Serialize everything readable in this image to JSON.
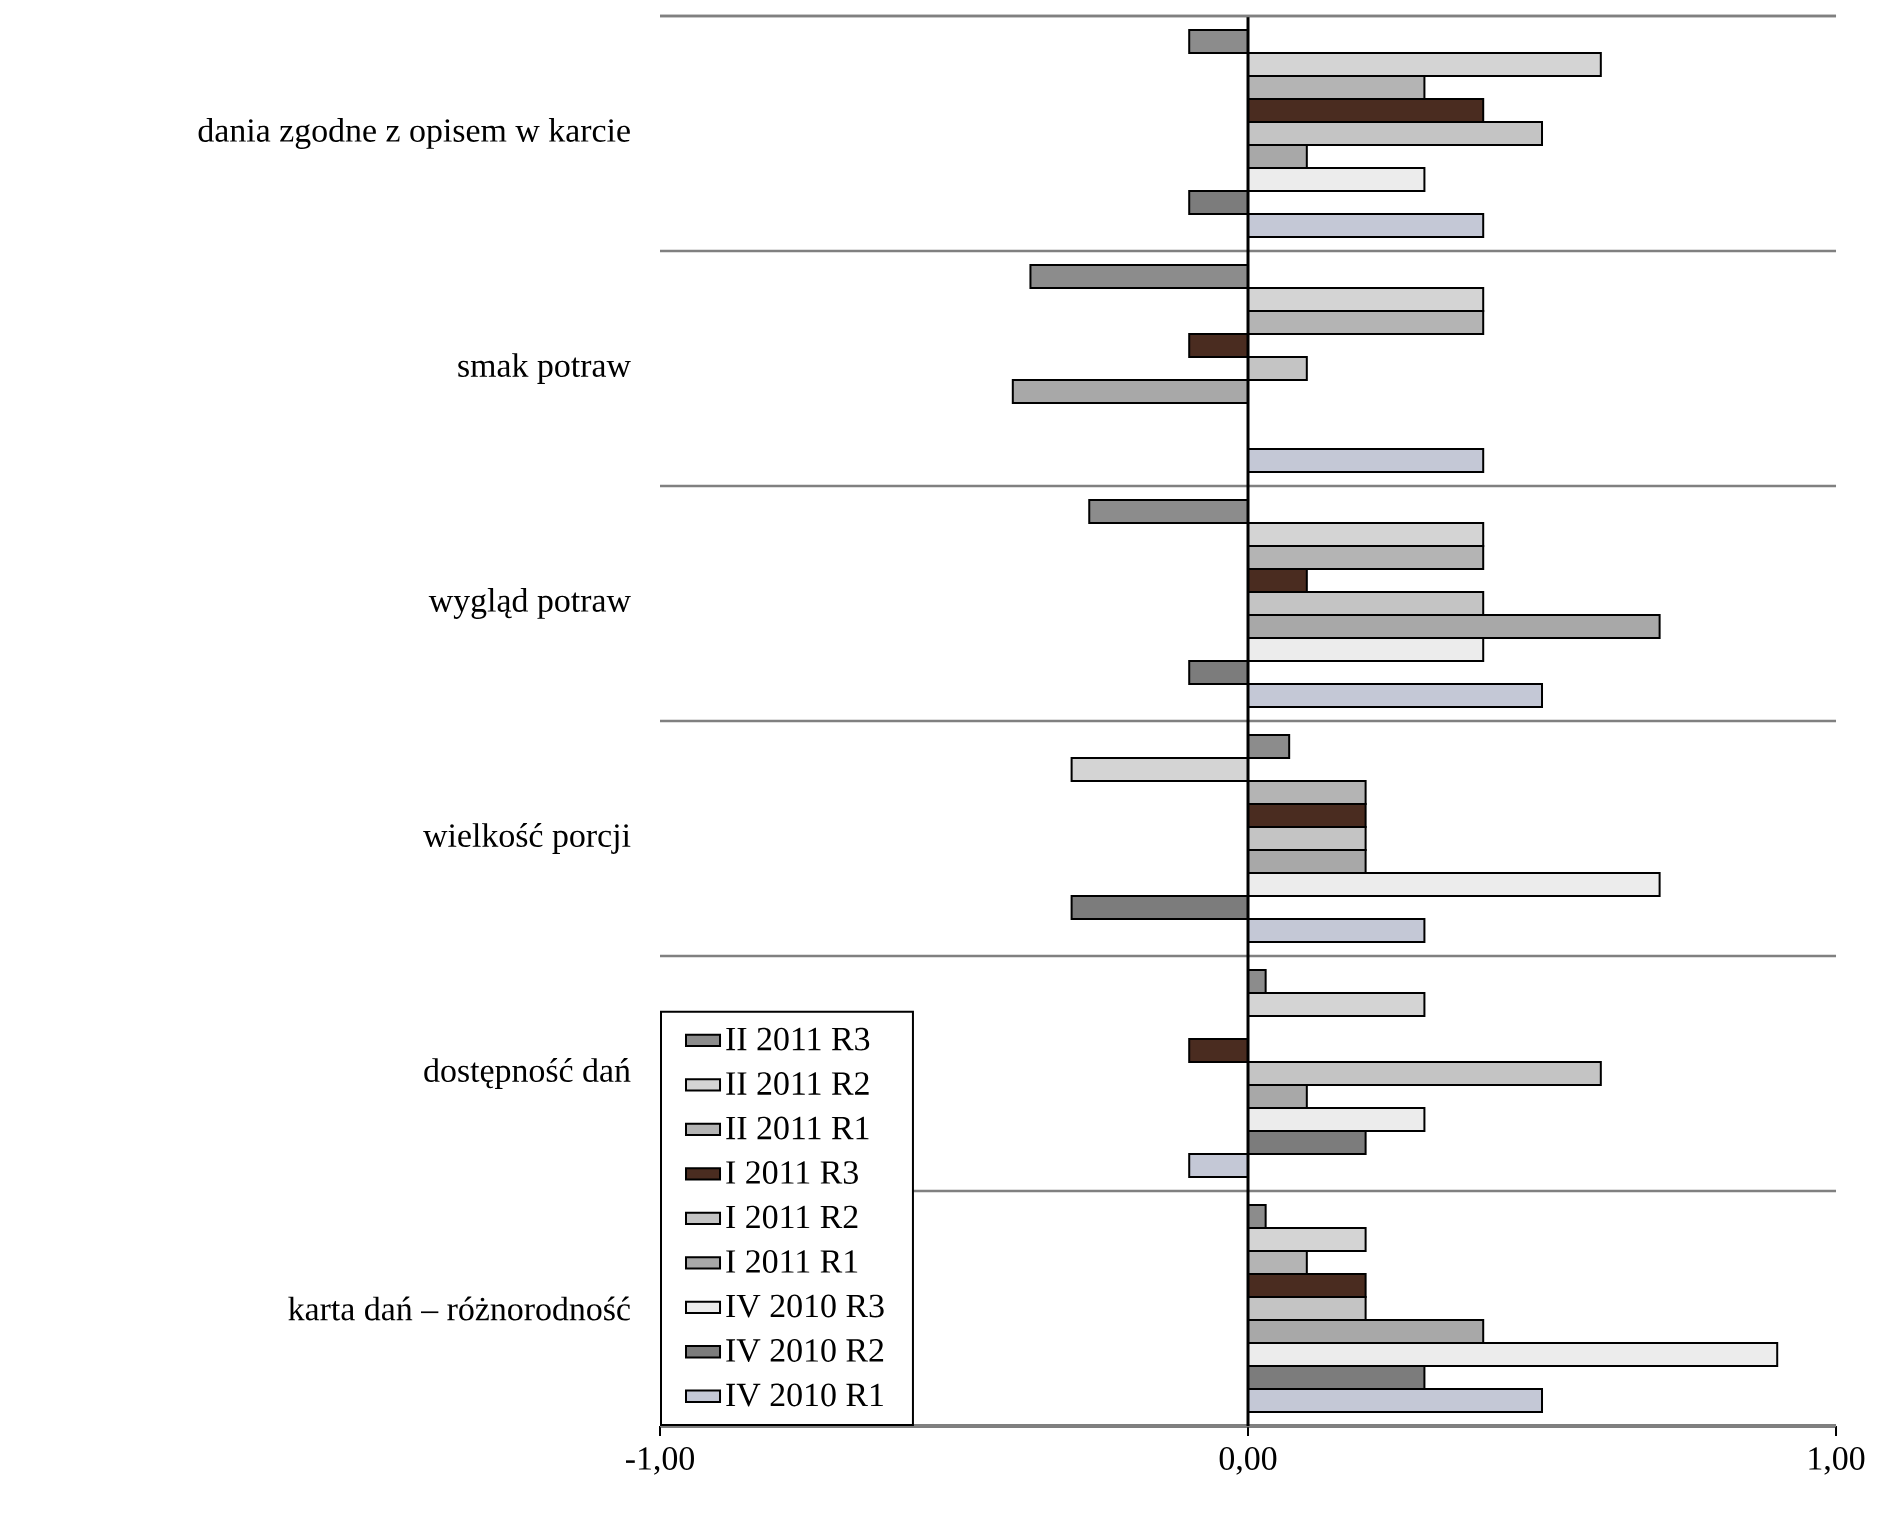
{
  "chart_data": {
    "type": "bar",
    "orientation": "horizontal",
    "categories": [
      "dania zgodne z opisem w karcie",
      "smak potraw",
      "wygląd potraw",
      "wielkość porcji",
      "dostępność dań",
      "karta dań – różnorodność"
    ],
    "series": [
      {
        "name": "II 2011 R3",
        "color": "#8c8c8c",
        "values": [
          -0.1,
          -0.37,
          -0.27,
          0.07,
          0.03,
          0.03
        ]
      },
      {
        "name": "II 2011 R2",
        "color": "#d4d4d4",
        "values": [
          0.6,
          0.4,
          0.4,
          -0.3,
          0.3,
          0.2
        ]
      },
      {
        "name": "II 2011 R1",
        "color": "#b4b4b4",
        "values": [
          0.3,
          0.4,
          0.4,
          0.2,
          null,
          0.1
        ]
      },
      {
        "name": "I 2011 R3",
        "color": "#4a2c20",
        "values": [
          0.4,
          -0.1,
          0.1,
          0.2,
          -0.1,
          0.2
        ]
      },
      {
        "name": "I 2011 R2",
        "color": "#c4c4c4",
        "values": [
          0.5,
          0.1,
          0.4,
          0.2,
          0.6,
          0.2
        ]
      },
      {
        "name": "I 2011 R1",
        "color": "#a8a8a8",
        "values": [
          0.1,
          -0.4,
          0.7,
          0.2,
          0.1,
          0.4
        ]
      },
      {
        "name": "IV 2010 R3",
        "color": "#ececec",
        "values": [
          0.3,
          null,
          0.4,
          0.7,
          0.3,
          0.9
        ]
      },
      {
        "name": "IV 2010 R2",
        "color": "#7c7c7c",
        "values": [
          -0.1,
          null,
          -0.1,
          -0.3,
          0.2,
          0.3
        ]
      },
      {
        "name": "IV 2010 R1",
        "color": "#c4c8d6",
        "values": [
          0.4,
          0.4,
          0.5,
          0.3,
          -0.1,
          0.5
        ]
      }
    ],
    "xlim": [
      -1,
      1
    ],
    "xticks": [
      {
        "value": -1,
        "label": "-1,00"
      },
      {
        "value": 0,
        "label": "0,00"
      },
      {
        "value": 1,
        "label": "1,00"
      }
    ],
    "grid": "y",
    "legend": "bottom left"
  }
}
